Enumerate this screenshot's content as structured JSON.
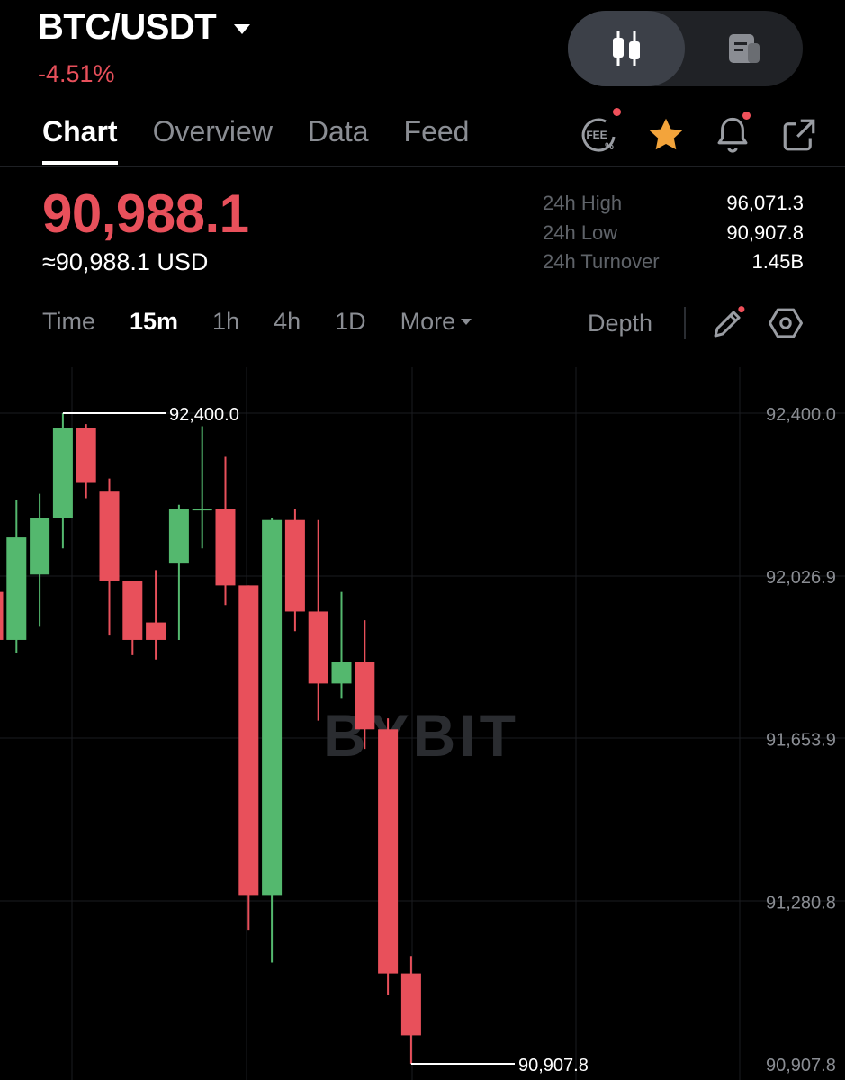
{
  "header": {
    "pair": "BTC/USDT",
    "change": "-4.51%",
    "view_toggle": {
      "active": "candlestick-icon",
      "inactive": "info-doc-icon"
    }
  },
  "tabs": [
    "Chart",
    "Overview",
    "Data",
    "Feed"
  ],
  "active_tab": "Chart",
  "header_icons": {
    "fee": {
      "icon": "fee-icon",
      "label": "FEE",
      "badge": true
    },
    "favorite": {
      "icon": "star-icon",
      "color": "#f3a43b"
    },
    "alert": {
      "icon": "bell-icon",
      "badge": true
    },
    "share": {
      "icon": "share-icon"
    }
  },
  "price": {
    "last": "90,988.1",
    "usd": "≈90,988.1 USD",
    "color": "#e8505b"
  },
  "stats": [
    {
      "label": "24h High",
      "value": "96,071.3"
    },
    {
      "label": "24h Low",
      "value": "90,907.8"
    },
    {
      "label": "24h Turnover",
      "value": "1.45B"
    }
  ],
  "intervals": [
    "Time",
    "15m",
    "1h",
    "4h",
    "1D",
    "More"
  ],
  "active_interval": "15m",
  "toolbar": {
    "depth": "Depth",
    "draw_icon": "pencil-icon",
    "settings_icon": "hexagon-settings-icon"
  },
  "chart_data": {
    "type": "candlestick",
    "watermark": "BYBIT",
    "up_color": "#54b86e",
    "down_color": "#e8505b",
    "y_ticks": [
      "92,400.0",
      "92,026.9",
      "91,653.9",
      "91,280.8",
      "90,907.8"
    ],
    "ylim": [
      90907.8,
      92400.0
    ],
    "high_marker": "92,400.0",
    "low_marker": "90,907.8",
    "candles": [
      {
        "o": 91990,
        "h": 92040,
        "c": 91880,
        "l": 91840
      },
      {
        "o": 91880,
        "h": 92200,
        "c": 92115,
        "l": 91850
      },
      {
        "o": 92030,
        "h": 92215,
        "c": 92160,
        "l": 91910
      },
      {
        "o": 92160,
        "h": 92400,
        "c": 92365,
        "l": 92090
      },
      {
        "o": 92365,
        "h": 92375,
        "c": 92240,
        "l": 92205
      },
      {
        "o": 92220,
        "h": 92250,
        "c": 92015,
        "l": 91890
      },
      {
        "o": 92015,
        "h": 92015,
        "c": 91880,
        "l": 91845
      },
      {
        "o": 91920,
        "h": 92040,
        "c": 91880,
        "l": 91835
      },
      {
        "o": 92055,
        "h": 92190,
        "c": 92180,
        "l": 91880
      },
      {
        "o": 92180,
        "h": 92370,
        "c": 92180,
        "l": 92090
      },
      {
        "o": 92180,
        "h": 92300,
        "c": 92005,
        "l": 91960
      },
      {
        "o": 92005,
        "h": 92005,
        "c": 91295,
        "l": 91215
      },
      {
        "o": 91295,
        "h": 92160,
        "c": 92155,
        "l": 91140
      },
      {
        "o": 92155,
        "h": 92180,
        "c": 91945,
        "l": 91900
      },
      {
        "o": 91945,
        "h": 92155,
        "c": 91780,
        "l": 91695
      },
      {
        "o": 91780,
        "h": 91990,
        "c": 91830,
        "l": 91745
      },
      {
        "o": 91830,
        "h": 91925,
        "c": 91675,
        "l": 91630
      },
      {
        "o": 91675,
        "h": 91700,
        "c": 91115,
        "l": 91065
      },
      {
        "o": 91115,
        "h": 91155,
        "c": 90973,
        "l": 90907.8
      }
    ]
  }
}
